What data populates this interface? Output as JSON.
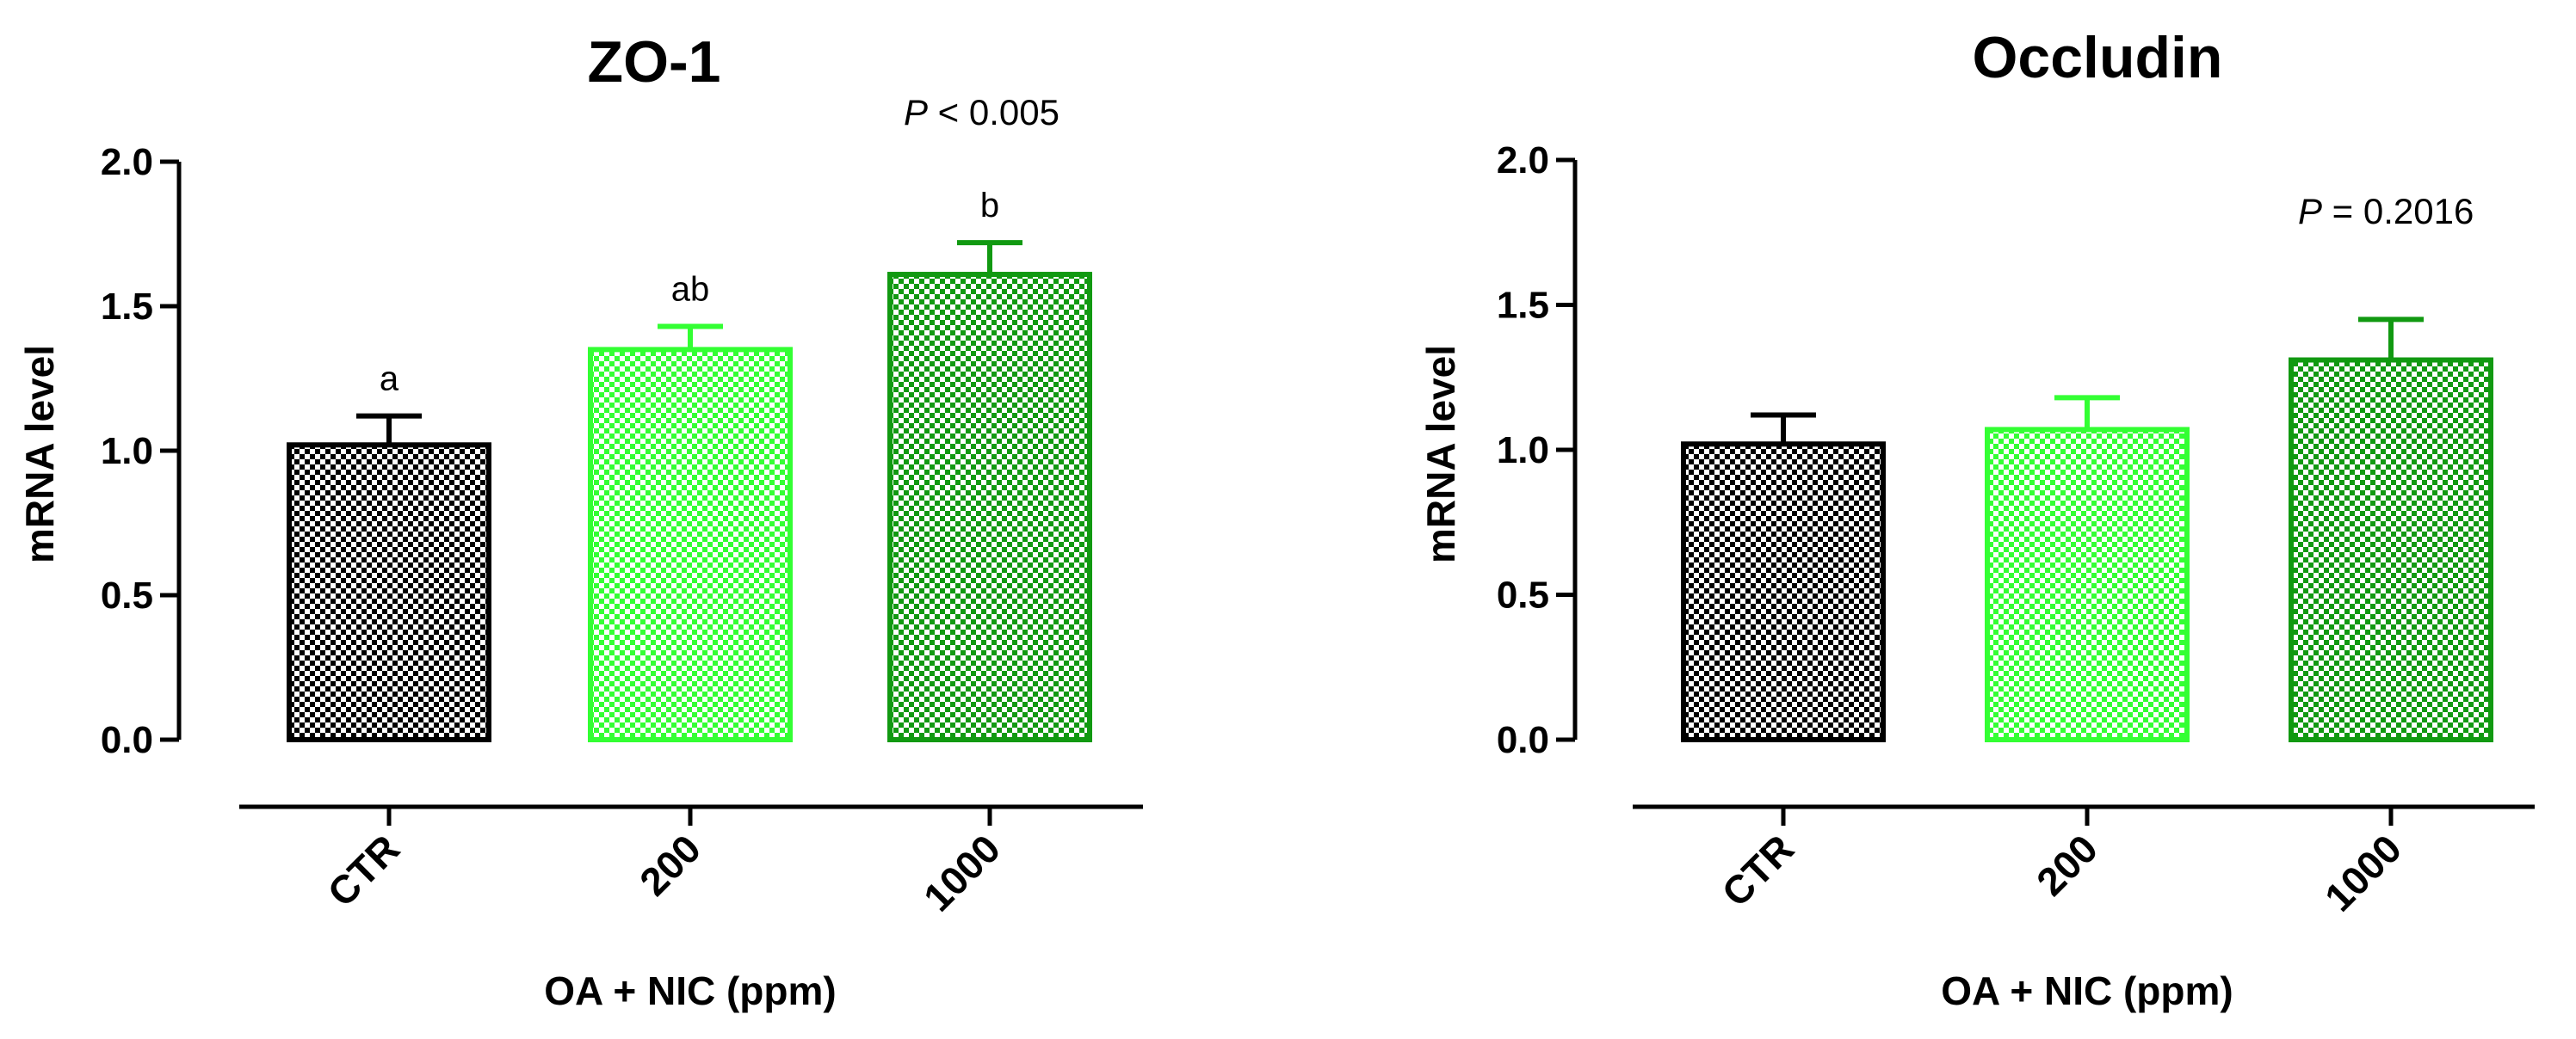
{
  "chart_data": [
    {
      "type": "bar",
      "title": "ZO-1",
      "p_label": "P",
      "p_text": " < 0.005",
      "xlabel": "OA + NIC (ppm)",
      "ylabel": "mRNA level",
      "ylim": [
        0,
        2.0
      ],
      "yticks": [
        "0.0",
        "0.5",
        "1.0",
        "1.5",
        "2.0"
      ],
      "categories": [
        "CTR",
        "200",
        "1000"
      ],
      "values": [
        1.02,
        1.35,
        1.61
      ],
      "errors": [
        0.1,
        0.08,
        0.11
      ],
      "sig_letters": [
        "a",
        "ab",
        "b"
      ],
      "colors": [
        "#000000",
        "#33ff33",
        "#119911"
      ]
    },
    {
      "type": "bar",
      "title": "Occludin",
      "p_label": "P",
      "p_text": " = 0.2016",
      "xlabel": "OA + NIC (ppm)",
      "ylabel": "mRNA level",
      "ylim": [
        0,
        2.0
      ],
      "yticks": [
        "0.0",
        "0.5",
        "1.0",
        "1.5",
        "2.0"
      ],
      "categories": [
        "CTR",
        "200",
        "1000"
      ],
      "values": [
        1.02,
        1.07,
        1.31
      ],
      "errors": [
        0.1,
        0.11,
        0.14
      ],
      "sig_letters": [],
      "colors": [
        "#000000",
        "#33ff33",
        "#119911"
      ]
    }
  ]
}
